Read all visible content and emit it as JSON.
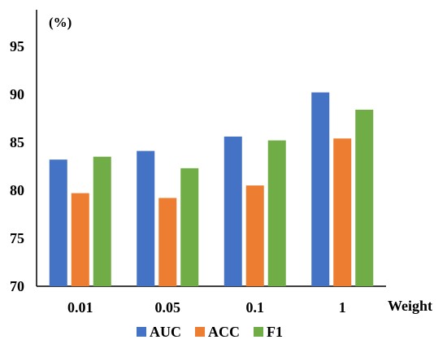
{
  "chart_data": {
    "type": "bar",
    "categories": [
      "0.01",
      "0.05",
      "0.1",
      "1"
    ],
    "series": [
      {
        "name": "AUC",
        "values": [
          83.2,
          84.1,
          85.6,
          90.2
        ],
        "color": "#4472C4"
      },
      {
        "name": "ACC",
        "values": [
          79.7,
          79.2,
          80.5,
          85.4
        ],
        "color": "#ED7D31"
      },
      {
        "name": "F1",
        "values": [
          83.5,
          82.3,
          85.2,
          88.4
        ],
        "color": "#70AD47"
      }
    ],
    "xlabel": "Weight",
    "ylabel": "(%)",
    "ylim": [
      70,
      100
    ],
    "yticks": [
      "70",
      "75",
      "80",
      "85",
      "90",
      "95"
    ],
    "grid": false,
    "legend_position": "bottom"
  }
}
